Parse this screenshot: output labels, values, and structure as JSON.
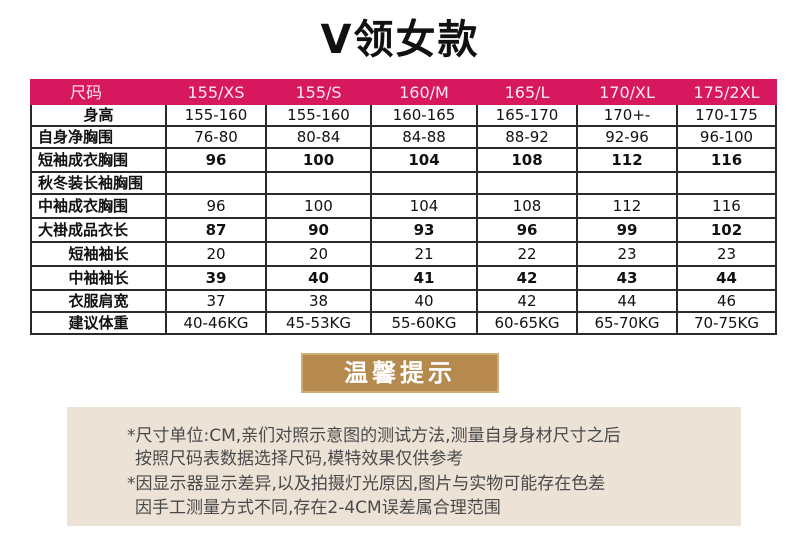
{
  "title": "V领女款",
  "table": {
    "header": [
      "尺码",
      "155/XS",
      "155/S",
      "160/M",
      "165/L",
      "170/XL",
      "175/2XL"
    ],
    "rows": [
      {
        "label": "身高",
        "values": [
          "155-160",
          "155-160",
          "160-165",
          "165-170",
          "170+-",
          "170-175"
        ]
      },
      {
        "label": "自身净胸围",
        "values": [
          "76-80",
          "80-84",
          "84-88",
          "88-92",
          "92-96",
          "96-100"
        ]
      },
      {
        "label": "短袖成衣胸围",
        "values": [
          "96",
          "100",
          "104",
          "108",
          "112",
          "116"
        ]
      },
      {
        "label": "秋冬装长袖胸围",
        "values": [
          "",
          "",
          "",
          "",
          "",
          ""
        ]
      },
      {
        "label": "中袖成衣胸围",
        "values": [
          "96",
          "100",
          "104",
          "108",
          "112",
          "116"
        ]
      },
      {
        "label": "大褂成品衣长",
        "values": [
          "87",
          "90",
          "93",
          "96",
          "99",
          "102"
        ]
      },
      {
        "label": "短袖袖长",
        "values": [
          "20",
          "20",
          "21",
          "22",
          "23",
          "23"
        ]
      },
      {
        "label": "中袖袖长",
        "values": [
          "39",
          "40",
          "41",
          "42",
          "43",
          "44"
        ]
      },
      {
        "label": "衣服肩宽",
        "values": [
          "37",
          "38",
          "40",
          "42",
          "44",
          "46"
        ]
      },
      {
        "label": "建议体重",
        "values": [
          "40-46KG",
          "45-53KG",
          "55-60KG",
          "60-65KG",
          "65-70KG",
          "70-75KG"
        ]
      }
    ]
  },
  "banner": "温馨提示",
  "notes": [
    "*尺寸单位:CM,亲们对照示意图的测试方法,测量自身身材尺寸之后",
    "按照尺码表数据选择尺码,模特效果仅供参考",
    "*因显示器显示差异,以及拍摄灯光原因,图片与实物可能存在色差",
    "因手工测量方式不同,存在2-4CM误差属合理范围"
  ]
}
